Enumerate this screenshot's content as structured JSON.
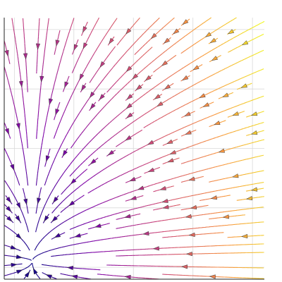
{
  "chart_data": {
    "type": "streamplot",
    "x_grid": [
      0,
      1,
      2,
      3,
      4
    ],
    "y_grid": [
      0,
      1,
      2,
      3,
      4
    ],
    "u": [
      [
        0.6,
        -1.4,
        -3.4,
        -5.4,
        -7.4
      ],
      [
        0.6,
        -1.4,
        -3.4,
        -5.4,
        -7.4
      ],
      [
        0.6,
        -1.4,
        -3.4,
        -5.4,
        -7.4
      ],
      [
        0.6,
        -1.4,
        -3.4,
        -5.4,
        -7.4
      ],
      [
        0.6,
        -1.4,
        -3.4,
        -5.4,
        -7.4
      ]
    ],
    "v": [
      [
        0.1,
        0.1,
        0.1,
        0.1,
        0.1
      ],
      [
        -0.9,
        -0.9,
        -0.9,
        -0.9,
        -0.9
      ],
      [
        -1.9,
        -1.9,
        -1.9,
        -1.9,
        -1.9
      ],
      [
        -2.9,
        -2.9,
        -2.9,
        -2.9,
        -2.9
      ],
      [
        -3.9,
        -3.9,
        -3.9,
        -3.9,
        -3.9
      ]
    ],
    "colormap": "plasma",
    "xlim": [
      -0.17,
      4.2
    ],
    "ylim": [
      -0.2,
      4.2
    ],
    "xticks": [
      0,
      1,
      2,
      3,
      4
    ],
    "yticks": [
      0,
      1,
      2,
      3,
      4
    ],
    "grid": true
  }
}
